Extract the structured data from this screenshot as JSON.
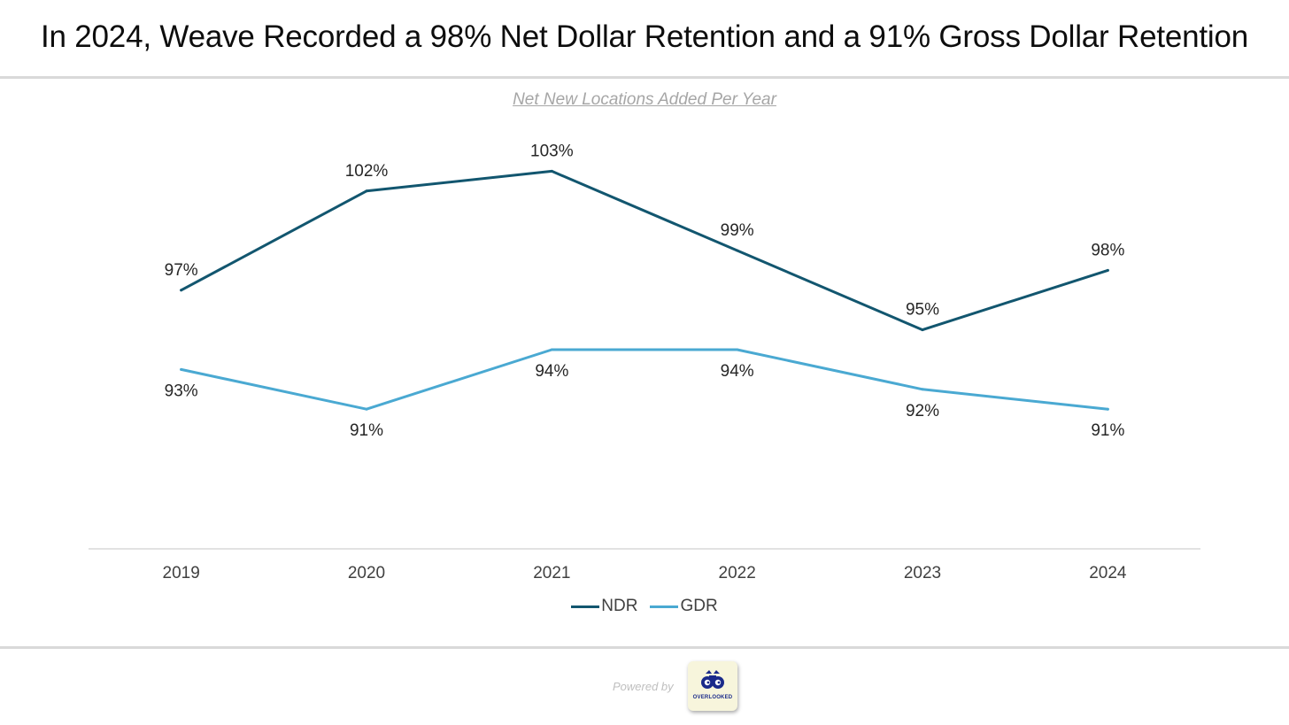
{
  "title": "In 2024, Weave Recorded a 98% Net Dollar Retention and a 91% Gross Dollar Retention",
  "footer": {
    "powered_by": "Powered by",
    "logo_text": "OVERLOOKED",
    "logo_icon": "binoculars-icon"
  },
  "colors": {
    "ndr": "#12566f",
    "gdr": "#4aa9d2",
    "axis": "#d9d9d9",
    "label": "#262626",
    "tick": "#404040"
  },
  "chart_data": {
    "type": "line",
    "title": "Net New Locations Added Per Year",
    "xlabel": "",
    "ylabel": "",
    "categories": [
      "2019",
      "2020",
      "2021",
      "2022",
      "2023",
      "2024"
    ],
    "series": [
      {
        "name": "NDR",
        "values": [
          97,
          102,
          103,
          99,
          95,
          98
        ],
        "labels": [
          "97%",
          "102%",
          "103%",
          "99%",
          "95%",
          "98%"
        ],
        "label_position": "above",
        "color": "#12566f"
      },
      {
        "name": "GDR",
        "values": [
          93,
          91,
          94,
          94,
          92,
          91
        ],
        "labels": [
          "93%",
          "91%",
          "94%",
          "94%",
          "92%",
          "91%"
        ],
        "label_position": "below",
        "color": "#4aa9d2"
      }
    ],
    "ylim": [
      85,
      105
    ],
    "grid": false,
    "legend": "bottom-center"
  }
}
